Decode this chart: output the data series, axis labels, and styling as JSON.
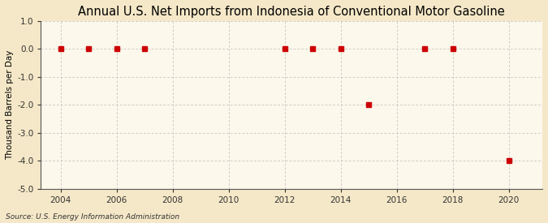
{
  "title": "Annual U.S. Net Imports from Indonesia of Conventional Motor Gasoline",
  "ylabel": "Thousand Barrels per Day",
  "source_text": "Source: U.S. Energy Information Administration",
  "background_color": "#f5e8c8",
  "plot_background_color": "#fdf8ec",
  "years": [
    2004,
    2005,
    2006,
    2007,
    2012,
    2013,
    2014,
    2015,
    2017,
    2018,
    2020
  ],
  "values": [
    0.0,
    0.0,
    0.0,
    0.0,
    0.0,
    0.0,
    0.0,
    -2.0,
    0.0,
    0.0,
    -4.0
  ],
  "marker_color": "#cc0000",
  "marker_size": 4,
  "xlim": [
    2003.3,
    2021.2
  ],
  "ylim": [
    -5.0,
    1.0
  ],
  "yticks": [
    1.0,
    0.0,
    -1.0,
    -2.0,
    -3.0,
    -4.0,
    -5.0
  ],
  "xticks": [
    2004,
    2006,
    2008,
    2010,
    2012,
    2014,
    2016,
    2018,
    2020
  ],
  "grid_color": "#bbbbbb",
  "title_fontsize": 10.5,
  "label_fontsize": 7.5,
  "tick_fontsize": 7.5,
  "source_fontsize": 6.5
}
